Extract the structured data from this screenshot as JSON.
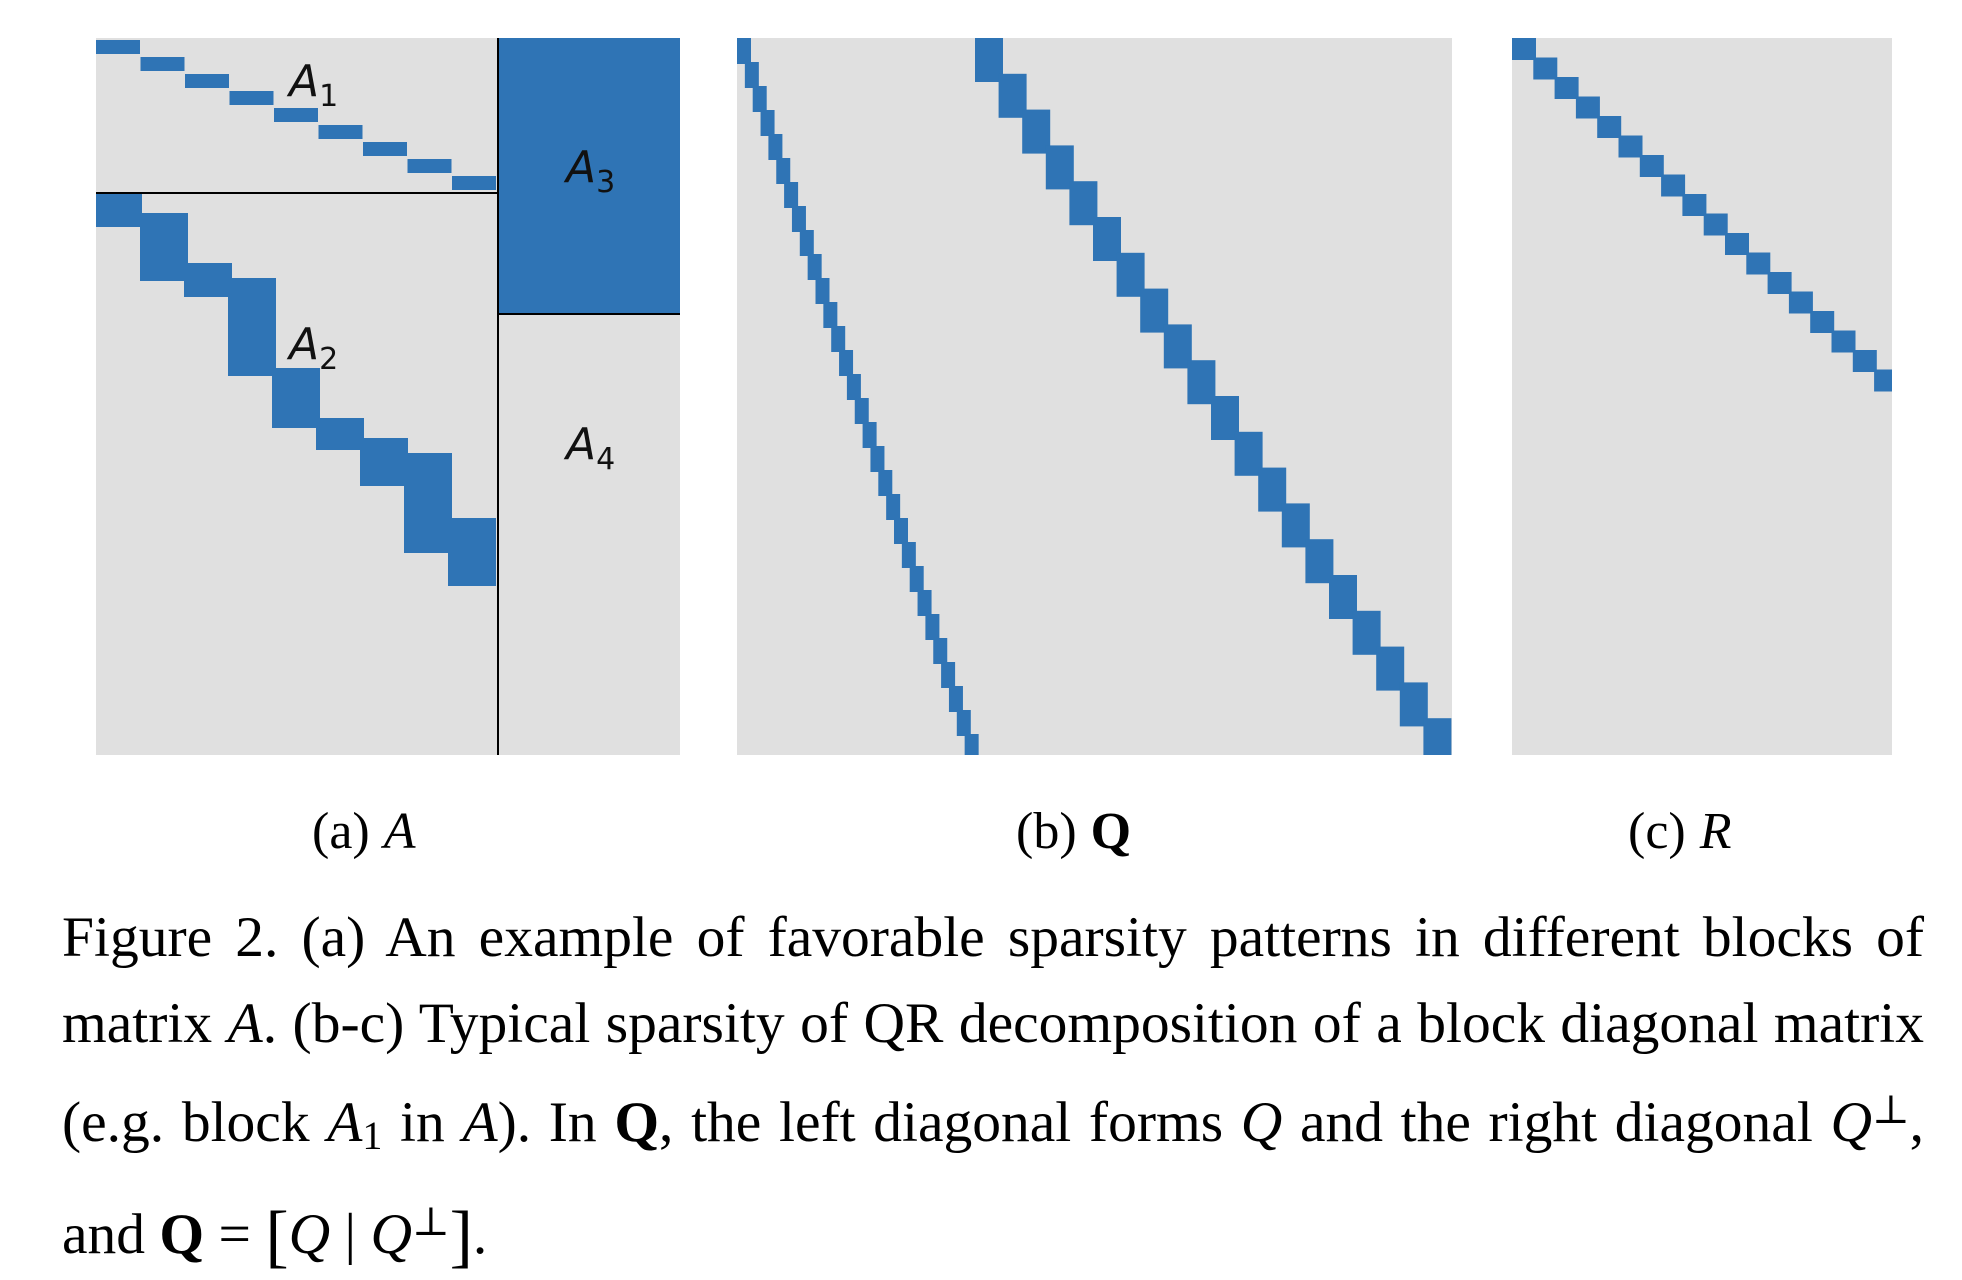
{
  "figure": {
    "panels": [
      {
        "id": "a",
        "subcaption_letter": "(a)",
        "subcaption_symbol": "A",
        "block_labels": [
          {
            "base": "A",
            "sub": "1"
          },
          {
            "base": "A",
            "sub": "2"
          },
          {
            "base": "A",
            "sub": "3"
          },
          {
            "base": "A",
            "sub": "4"
          }
        ]
      },
      {
        "id": "b",
        "subcaption_letter": "(b)",
        "subcaption_symbol": "Q"
      },
      {
        "id": "c",
        "subcaption_letter": "(c)",
        "subcaption_symbol": "R"
      }
    ],
    "colors": {
      "nonzero": "#2f74b5",
      "background": "#e0e0e0",
      "divider": "#000000"
    },
    "caption": {
      "p1": "Figure 2. (a) An example of favorable sparsity patterns in different blocks of matrix ",
      "A": "A",
      "p2": ". (b-c) Typical sparsity of QR decomposition of a block diagonal matrix (e.g. block ",
      "A1_base": "A",
      "A1_sub": "1",
      "p3": " in ",
      "p4": "). In ",
      "Q_bold": "Q",
      "p5": ", the left diagonal forms ",
      "Q": "Q",
      "p6": " and the right diagonal ",
      "perp": "⊥",
      "p7": ", and ",
      "eq": " = ",
      "lbr": "[",
      "bar": " | ",
      "rbr": "]",
      "end": "."
    }
  }
}
